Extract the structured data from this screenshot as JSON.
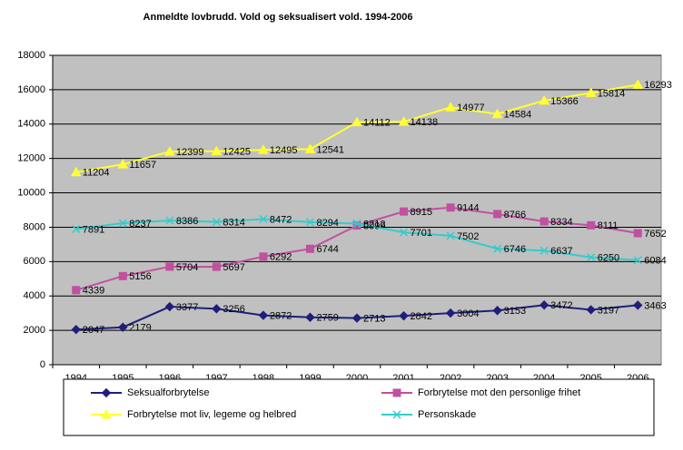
{
  "chart_data": {
    "type": "line",
    "title": "Anmeldte lovbrudd. Vold og seksualisert vold. 1994-2006",
    "categories": [
      "1994",
      "1995",
      "1996",
      "1997",
      "1998",
      "1999",
      "2000",
      "2001",
      "2002",
      "2003",
      "2004",
      "2005",
      "2006"
    ],
    "series": [
      {
        "name": "Seksualforbrytelse",
        "color": "#1f1f7a",
        "marker": "diamond",
        "values": [
          2047,
          2179,
          3377,
          3256,
          2872,
          2759,
          2713,
          2842,
          3004,
          3153,
          3472,
          3197,
          3463
        ]
      },
      {
        "name": "Forbrytelse mot den personlige frihet",
        "color": "#c050a0",
        "marker": "square",
        "values": [
          4339,
          5156,
          5704,
          5697,
          6292,
          6744,
          8099,
          8915,
          9144,
          8766,
          8334,
          8111,
          7652
        ]
      },
      {
        "name": "Forbrytelse mot liv, legeme og helbred",
        "color": "#ffff33",
        "marker": "triangle",
        "values": [
          11204,
          11657,
          12399,
          12425,
          12495,
          12541,
          14112,
          14138,
          14977,
          14584,
          15366,
          15814,
          16293
        ]
      },
      {
        "name": "Personskade",
        "color": "#33cccc",
        "marker": "x",
        "values": [
          7891,
          8237,
          8386,
          8314,
          8472,
          8294,
          8212,
          7701,
          7502,
          6746,
          6637,
          6250,
          6084
        ]
      }
    ],
    "ylim": [
      0,
      18000
    ],
    "yticks": [
      0,
      2000,
      4000,
      6000,
      8000,
      10000,
      12000,
      14000,
      16000,
      18000
    ],
    "grid": true
  }
}
